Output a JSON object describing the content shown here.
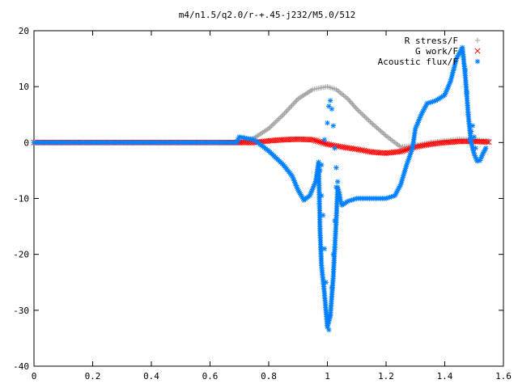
{
  "chart_data": {
    "type": "scatter",
    "title": "m4/n1.5/q2.0/r-+.45-j232/M5.0/512",
    "xlabel": "",
    "ylabel": "",
    "xlim": [
      0,
      1.6
    ],
    "ylim": [
      -40,
      20
    ],
    "xticks": [
      "0",
      "0.2",
      "0.4",
      "0.6",
      "0.8",
      "1",
      "1.2",
      "1.4",
      "1.6"
    ],
    "yticks": [
      "20",
      "10",
      "0",
      "-10",
      "-20",
      "-30",
      "-40"
    ],
    "legend_position": "top-right",
    "grid": false,
    "series": [
      {
        "name": "R stress/F",
        "marker": "+",
        "color": "#a0a0a0",
        "points": [
          [
            0,
            0
          ],
          [
            0.6,
            0
          ],
          [
            0.7,
            0
          ],
          [
            0.75,
            0.8
          ],
          [
            0.8,
            2.5
          ],
          [
            0.85,
            5
          ],
          [
            0.9,
            7.8
          ],
          [
            0.95,
            9.5
          ],
          [
            1.0,
            10
          ],
          [
            1.03,
            9.5
          ],
          [
            1.07,
            7.8
          ],
          [
            1.1,
            6
          ],
          [
            1.15,
            3.5
          ],
          [
            1.2,
            1.2
          ],
          [
            1.25,
            -0.8
          ],
          [
            1.3,
            -0.5
          ],
          [
            1.35,
            0
          ],
          [
            1.4,
            0.3
          ],
          [
            1.45,
            0.6
          ],
          [
            1.5,
            0.5
          ],
          [
            1.55,
            0.3
          ]
        ]
      },
      {
        "name": "G work/F",
        "marker": "x",
        "color": "#ff0000",
        "points": [
          [
            0,
            0
          ],
          [
            0.6,
            0
          ],
          [
            0.7,
            0
          ],
          [
            0.75,
            0
          ],
          [
            0.8,
            0.3
          ],
          [
            0.85,
            0.5
          ],
          [
            0.9,
            0.6
          ],
          [
            0.95,
            0.5
          ],
          [
            1.0,
            -0.3
          ],
          [
            1.05,
            -0.8
          ],
          [
            1.1,
            -1.2
          ],
          [
            1.15,
            -1.7
          ],
          [
            1.2,
            -1.9
          ],
          [
            1.25,
            -1.6
          ],
          [
            1.3,
            -0.8
          ],
          [
            1.35,
            -0.3
          ],
          [
            1.4,
            0
          ],
          [
            1.45,
            0.2
          ],
          [
            1.5,
            0.2
          ],
          [
            1.55,
            0.1
          ]
        ]
      },
      {
        "name": "Acoustic flux/F",
        "marker": "*",
        "color": "#0080ff",
        "points": [
          [
            0,
            0
          ],
          [
            0.6,
            0
          ],
          [
            0.69,
            0
          ],
          [
            0.7,
            1
          ],
          [
            0.75,
            0.5
          ],
          [
            0.8,
            -1.5
          ],
          [
            0.85,
            -4
          ],
          [
            0.88,
            -6
          ],
          [
            0.9,
            -8.5
          ],
          [
            0.92,
            -10.3
          ],
          [
            0.94,
            -9.5
          ],
          [
            0.96,
            -7
          ],
          [
            0.97,
            -3.5
          ],
          [
            0.975,
            -16
          ],
          [
            0.98,
            -22
          ],
          [
            0.99,
            -27
          ],
          [
            1.0,
            -33
          ],
          [
            1.01,
            -31
          ],
          [
            1.02,
            -24
          ],
          [
            1.03,
            -14
          ],
          [
            1.035,
            -8
          ],
          [
            1.04,
            -9
          ],
          [
            1.045,
            -10.5
          ],
          [
            1.05,
            -11.2
          ],
          [
            1.07,
            -10.5
          ],
          [
            1.1,
            -10
          ],
          [
            1.15,
            -10
          ],
          [
            1.2,
            -10
          ],
          [
            1.23,
            -9.5
          ],
          [
            1.25,
            -7.5
          ],
          [
            1.27,
            -4
          ],
          [
            1.29,
            -1
          ],
          [
            1.3,
            2.5
          ],
          [
            1.32,
            5
          ],
          [
            1.34,
            7
          ],
          [
            1.37,
            7.5
          ],
          [
            1.4,
            8.5
          ],
          [
            1.42,
            11
          ],
          [
            1.44,
            15
          ],
          [
            1.46,
            17
          ],
          [
            1.47,
            12
          ],
          [
            1.48,
            5
          ],
          [
            1.49,
            0
          ],
          [
            1.5,
            -2
          ],
          [
            1.51,
            -3.3
          ],
          [
            1.52,
            -3.2
          ],
          [
            1.53,
            -2
          ],
          [
            1.54,
            -1
          ]
        ]
      }
    ],
    "spikes": [
      {
        "name": "Acoustic flux/F",
        "points": [
          [
            0.975,
            -5
          ],
          [
            0.98,
            -9.5
          ],
          [
            0.985,
            -13
          ],
          [
            0.99,
            -19
          ],
          [
            0.995,
            -25
          ],
          [
            1.0,
            -31
          ],
          [
            1.005,
            -33.5
          ],
          [
            1.01,
            -31
          ],
          [
            1.015,
            -26
          ],
          [
            1.02,
            -20
          ],
          [
            1.025,
            -14
          ],
          [
            1.03,
            -8
          ],
          [
            0.98,
            -4
          ],
          [
            0.99,
            0.5
          ],
          [
            1.0,
            3.5
          ],
          [
            1.005,
            6.5
          ],
          [
            1.01,
            7.5
          ],
          [
            1.015,
            6
          ],
          [
            1.02,
            3
          ],
          [
            1.025,
            -1
          ],
          [
            1.03,
            -4.5
          ],
          [
            1.035,
            -7
          ],
          [
            1.47,
            13
          ],
          [
            1.475,
            9
          ],
          [
            1.48,
            5
          ],
          [
            1.485,
            0.5
          ],
          [
            1.49,
            2
          ],
          [
            1.495,
            3
          ],
          [
            1.5,
            1
          ],
          [
            1.505,
            -1
          ]
        ]
      }
    ]
  }
}
